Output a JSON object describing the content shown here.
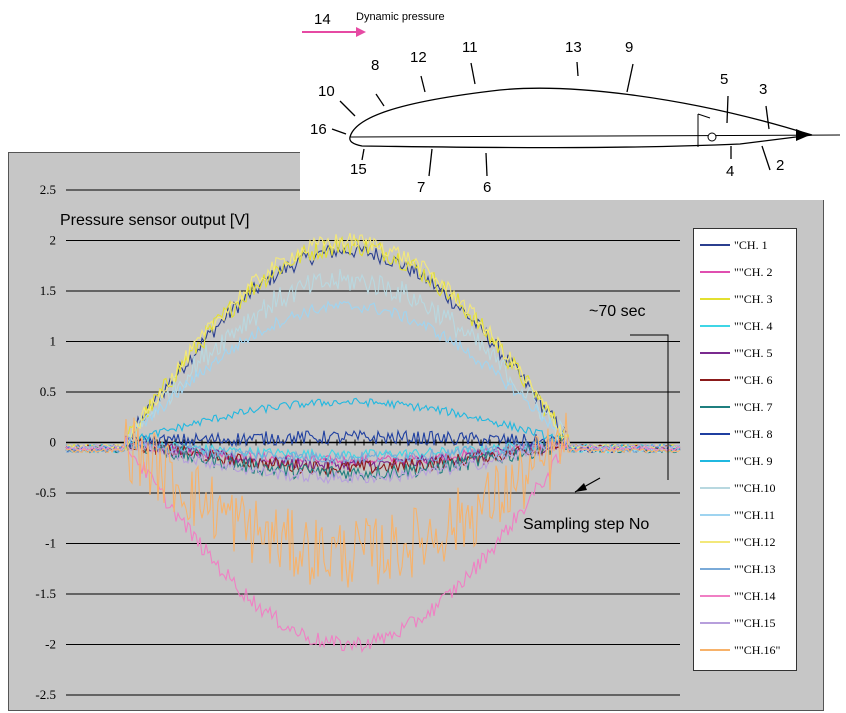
{
  "chart_data": {
    "type": "line",
    "title": "",
    "ylabel": "Pressure sensor output [V]",
    "xlabel": "Sampling step No",
    "ylim": [
      -2.5,
      2.5
    ],
    "yticks": [
      "2.5",
      "2",
      "1.5",
      "1",
      "0.5",
      "0",
      "-0.5",
      "-1",
      "-1.5",
      "-2",
      "-2.5"
    ],
    "grid": "horizontal",
    "legend_position": "right",
    "duration_label": "~70 sec",
    "series": [
      {
        "name": "\"CH. 1",
        "color": "#2b3f8f",
        "peak": 1.9,
        "noise": 0.08
      },
      {
        "name": "\"\"CH. 2",
        "color": "#e04fb0",
        "peak": -0.18,
        "noise": 0.05
      },
      {
        "name": "\"\"CH. 3",
        "color": "#e3e030",
        "peak": 1.95,
        "noise": 0.1
      },
      {
        "name": "\"\"CH. 4",
        "color": "#3fd6e6",
        "peak": -0.12,
        "noise": 0.05
      },
      {
        "name": "\"\"CH. 5",
        "color": "#7a2a8f",
        "peak": -0.22,
        "noise": 0.06
      },
      {
        "name": "\"\"CH. 6",
        "color": "#8b1a1a",
        "peak": -0.25,
        "noise": 0.07
      },
      {
        "name": "\"\"CH. 7",
        "color": "#1f7f7f",
        "peak": -0.3,
        "noise": 0.08
      },
      {
        "name": "\"\"CH. 8",
        "color": "#1f3fa0",
        "peak": 0.05,
        "noise": 0.07
      },
      {
        "name": "\"\"CH. 9",
        "color": "#20b8e0",
        "peak": 0.4,
        "noise": 0.04
      },
      {
        "name": "\"\"CH.10",
        "color": "#b8d8e0",
        "peak": 1.6,
        "noise": 0.12
      },
      {
        "name": "\"\"CH.11",
        "color": "#9fd4f0",
        "peak": 1.35,
        "noise": 0.06
      },
      {
        "name": "\"\"CH.12",
        "color": "#f3e87a",
        "peak": 2.0,
        "noise": 0.08
      },
      {
        "name": "\"\"CH.13",
        "color": "#7aaad8",
        "peak": -0.15,
        "noise": 0.06
      },
      {
        "name": "\"\"CH.14",
        "color": "#f07fc4",
        "peak": -2.0,
        "noise": 0.08
      },
      {
        "name": "\"\"CH.15",
        "color": "#b79fdc",
        "peak": -0.35,
        "noise": 0.06
      },
      {
        "name": "\"\"CH.16\"",
        "color": "#f7b26a",
        "peak": -1.1,
        "noise": 0.35
      }
    ]
  },
  "airfoil": {
    "title_number": "14",
    "title_text": "Dynamic pressure",
    "sensor_labels": [
      "10",
      "8",
      "12",
      "11",
      "13",
      "9",
      "5",
      "3",
      "16",
      "15",
      "7",
      "6",
      "4",
      "2"
    ]
  }
}
